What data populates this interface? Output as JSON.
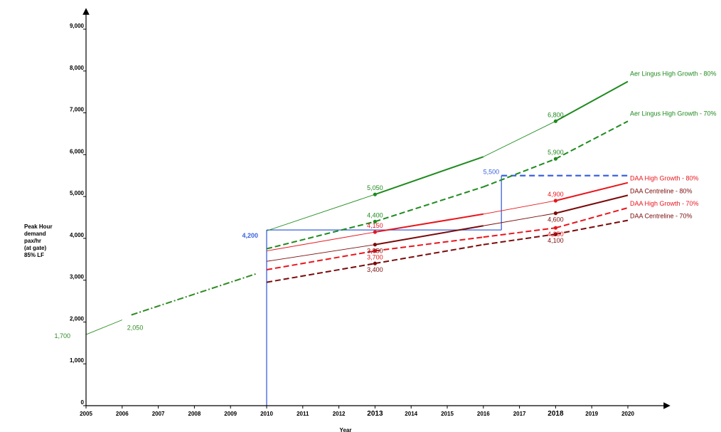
{
  "chart_data": {
    "type": "line",
    "xlabel": "Year",
    "ylabel": [
      "Peak Hour",
      "demand",
      "pax/hr",
      "(at gate)",
      "85% LF"
    ],
    "xlim": [
      2005,
      2020
    ],
    "ylim": [
      0,
      9000
    ],
    "x_ticks": [
      "2005",
      "2006",
      "2007",
      "2008",
      "2009",
      "2010",
      "2011",
      "2012",
      "2013",
      "2014",
      "2015",
      "2016",
      "2017",
      "2018",
      "2019",
      "2020"
    ],
    "x_ticks_emphasized": [
      "2013",
      "2018"
    ],
    "y_ticks": [
      "0",
      "1,000",
      "2,000",
      "3,000",
      "4,000",
      "5,000",
      "6,000",
      "7,000",
      "8,000",
      "9,000"
    ],
    "y_tick_values": [
      0,
      1000,
      2000,
      3000,
      4000,
      5000,
      6000,
      7000,
      8000,
      9000
    ],
    "historical": {
      "points": [
        {
          "x": 2005,
          "y": 1700
        },
        {
          "x": 2006,
          "y": 2050
        },
        {
          "x": 2009.7,
          "y": 3150
        }
      ],
      "labels": [
        {
          "text": "1,700",
          "x": 2005,
          "y": 1700
        },
        {
          "text": "2,050",
          "x": 2006,
          "y": 2050
        }
      ],
      "color": "#2e8b22"
    },
    "series": [
      {
        "name": "Aer Lingus High Growth - 80%",
        "color": "#1e8a1e",
        "dashed": false,
        "points": [
          {
            "x": 2010,
            "y": 4180
          },
          {
            "x": 2013,
            "y": 5050
          },
          {
            "x": 2016,
            "y": 5950
          },
          {
            "x": 2018,
            "y": 6800
          },
          {
            "x": 2020,
            "y": 7750
          }
        ],
        "markers": [
          {
            "x": 2013,
            "y": 5050,
            "label": "5,050"
          },
          {
            "x": 2018,
            "y": 6800,
            "label": "6,800"
          }
        ]
      },
      {
        "name": "Aer Lingus High Growth - 70%",
        "color": "#1e8a1e",
        "dashed": true,
        "points": [
          {
            "x": 2010,
            "y": 3750
          },
          {
            "x": 2013,
            "y": 4400
          },
          {
            "x": 2016,
            "y": 5230
          },
          {
            "x": 2018,
            "y": 5900
          },
          {
            "x": 2020,
            "y": 6800
          }
        ],
        "markers": [
          {
            "x": 2013,
            "y": 4400,
            "label": "4,400"
          },
          {
            "x": 2018,
            "y": 5900,
            "label": "5,900"
          }
        ]
      },
      {
        "name": "DAA High Growth - 80%",
        "color": "#e8151b",
        "dashed": false,
        "points": [
          {
            "x": 2010,
            "y": 3700
          },
          {
            "x": 2013,
            "y": 4150
          },
          {
            "x": 2016,
            "y": 4580
          },
          {
            "x": 2018,
            "y": 4900
          },
          {
            "x": 2020,
            "y": 5330
          }
        ],
        "markers": [
          {
            "x": 2013,
            "y": 4150,
            "label": "4,150"
          },
          {
            "x": 2018,
            "y": 4900,
            "label": "4,900"
          }
        ]
      },
      {
        "name": "DAA Centreline - 80%",
        "color": "#7a0a0a",
        "dashed": false,
        "points": [
          {
            "x": 2010,
            "y": 3450
          },
          {
            "x": 2013,
            "y": 3850
          },
          {
            "x": 2016,
            "y": 4300
          },
          {
            "x": 2018,
            "y": 4600
          },
          {
            "x": 2020,
            "y": 5030
          }
        ],
        "markers": [
          {
            "x": 2013,
            "y": 3850,
            "label": "3,850"
          },
          {
            "x": 2018,
            "y": 4600,
            "label": "4,600"
          }
        ]
      },
      {
        "name": "DAA High Growth - 70%",
        "color": "#e8151b",
        "dashed": true,
        "points": [
          {
            "x": 2010,
            "y": 3250
          },
          {
            "x": 2013,
            "y": 3700
          },
          {
            "x": 2016,
            "y": 4030
          },
          {
            "x": 2018,
            "y": 4250
          },
          {
            "x": 2020,
            "y": 4730
          }
        ],
        "markers": [
          {
            "x": 2013,
            "y": 3700,
            "label": "3,700"
          },
          {
            "x": 2018,
            "y": 4250,
            "label": "4,250"
          }
        ]
      },
      {
        "name": "DAA Centreline - 70%",
        "color": "#7a0a0a",
        "dashed": true,
        "points": [
          {
            "x": 2010,
            "y": 2950
          },
          {
            "x": 2013,
            "y": 3400
          },
          {
            "x": 2016,
            "y": 3850
          },
          {
            "x": 2018,
            "y": 4100
          },
          {
            "x": 2020,
            "y": 4430
          }
        ],
        "markers": [
          {
            "x": 2013,
            "y": 3400,
            "label": "3,400"
          },
          {
            "x": 2018,
            "y": 4100,
            "label": "4,100"
          }
        ]
      }
    ],
    "reference_lines": [
      {
        "label": "4,200",
        "year": 2010,
        "value": 4200,
        "to_year": 2016.5,
        "color": "#3a62e0",
        "dashed": false
      },
      {
        "label": "5,500",
        "year": 2016.5,
        "value": 5500,
        "from_value": 4200,
        "to_year": 2020,
        "color": "#3a62e0",
        "dashed": true
      }
    ]
  }
}
